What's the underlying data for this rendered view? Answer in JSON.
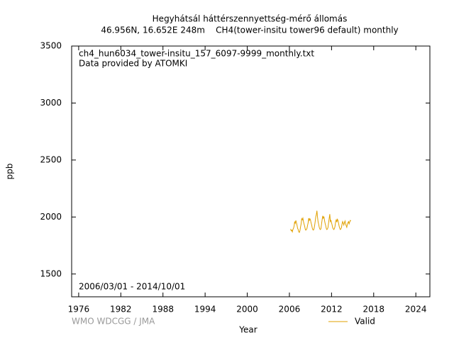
{
  "chart_data": {
    "type": "line",
    "title": "Hegyhátsál háttérszennyettség-mérő állomás",
    "subtitle": "46.956N, 16.652E 248m    CH4(tower-insitu tower96 default) monthly",
    "xlabel": "Year",
    "ylabel": "ppb",
    "annotations": [
      "ch4_hun6034_tower-insitu_157_6097-9999_monthly.txt",
      "Data provided by ATOMKI",
      "2006/03/01 - 2014/10/01"
    ],
    "credit": "WMO WDCGG / JMA",
    "xlim": [
      1975,
      2026
    ],
    "xticks": [
      1976,
      1982,
      1988,
      1994,
      2000,
      2006,
      2012,
      2018,
      2024
    ],
    "ylim": [
      1300,
      3500
    ],
    "yticks": [
      1500,
      2000,
      2500,
      3000,
      3500
    ],
    "legend": "bottom-right",
    "x": [
      2006.17,
      2006.25,
      2006.33,
      2006.42,
      2006.5,
      2006.58,
      2006.67,
      2006.75,
      2006.83,
      2006.92,
      2007,
      2007.08,
      2007.17,
      2007.25,
      2007.33,
      2007.42,
      2007.5,
      2007.58,
      2007.67,
      2007.75,
      2007.83,
      2007.92,
      2008,
      2008.08,
      2008.17,
      2008.25,
      2008.33,
      2008.42,
      2008.5,
      2008.58,
      2008.67,
      2008.75,
      2008.83,
      2008.92,
      2009,
      2009.08,
      2009.17,
      2009.25,
      2009.33,
      2009.42,
      2009.5,
      2009.58,
      2009.67,
      2009.75,
      2009.83,
      2009.92,
      2010,
      2010.08,
      2010.17,
      2010.25,
      2010.33,
      2010.42,
      2010.5,
      2010.58,
      2010.67,
      2010.75,
      2010.83,
      2010.92,
      2011,
      2011.08,
      2011.17,
      2011.25,
      2011.33,
      2011.42,
      2011.5,
      2011.58,
      2011.67,
      2011.75,
      2011.83,
      2011.92,
      2012,
      2012.08,
      2012.17,
      2012.25,
      2012.33,
      2012.42,
      2012.5,
      2012.58,
      2012.67,
      2012.75,
      2012.83,
      2012.92,
      2013,
      2013.08,
      2013.17,
      2013.25,
      2013.33,
      2013.42,
      2013.5,
      2013.58,
      2013.67,
      2013.75,
      2013.83,
      2013.92,
      2014,
      2014.08,
      2014.17,
      2014.25,
      2014.33,
      2014.42,
      2014.5,
      2014.58,
      2014.67,
      2014.75
    ],
    "series": [
      {
        "name": "Valid",
        "color": "#e0a000",
        "values": [
          1895,
          1880,
          1885,
          1870,
          1890,
          1900,
          1920,
          1960,
          1945,
          1970,
          1950,
          1930,
          1900,
          1890,
          1870,
          1865,
          1880,
          1910,
          1940,
          1985,
          1975,
          1990,
          1960,
          1940,
          1920,
          1895,
          1885,
          1890,
          1900,
          1925,
          1950,
          1990,
          1970,
          1985,
          1975,
          1950,
          1930,
          1905,
          1890,
          1885,
          1895,
          1920,
          1960,
          2000,
          2020,
          2055,
          2000,
          1960,
          1935,
          1910,
          1895,
          1890,
          1900,
          1940,
          1980,
          2010,
          1990,
          2000,
          1970,
          1945,
          1925,
          1900,
          1890,
          1895,
          1910,
          1950,
          1990,
          2025,
          1960,
          1970,
          1950,
          1930,
          1905,
          1895,
          1890,
          1900,
          1920,
          1960,
          1975,
          1955,
          1980,
          1970,
          1945,
          1920,
          1900,
          1890,
          1895,
          1910,
          1940,
          1960,
          1945,
          1930,
          1950,
          1965,
          1940,
          1925,
          1910,
          1935,
          1950,
          1960,
          1940,
          1955,
          1970,
          1965
        ]
      }
    ]
  }
}
